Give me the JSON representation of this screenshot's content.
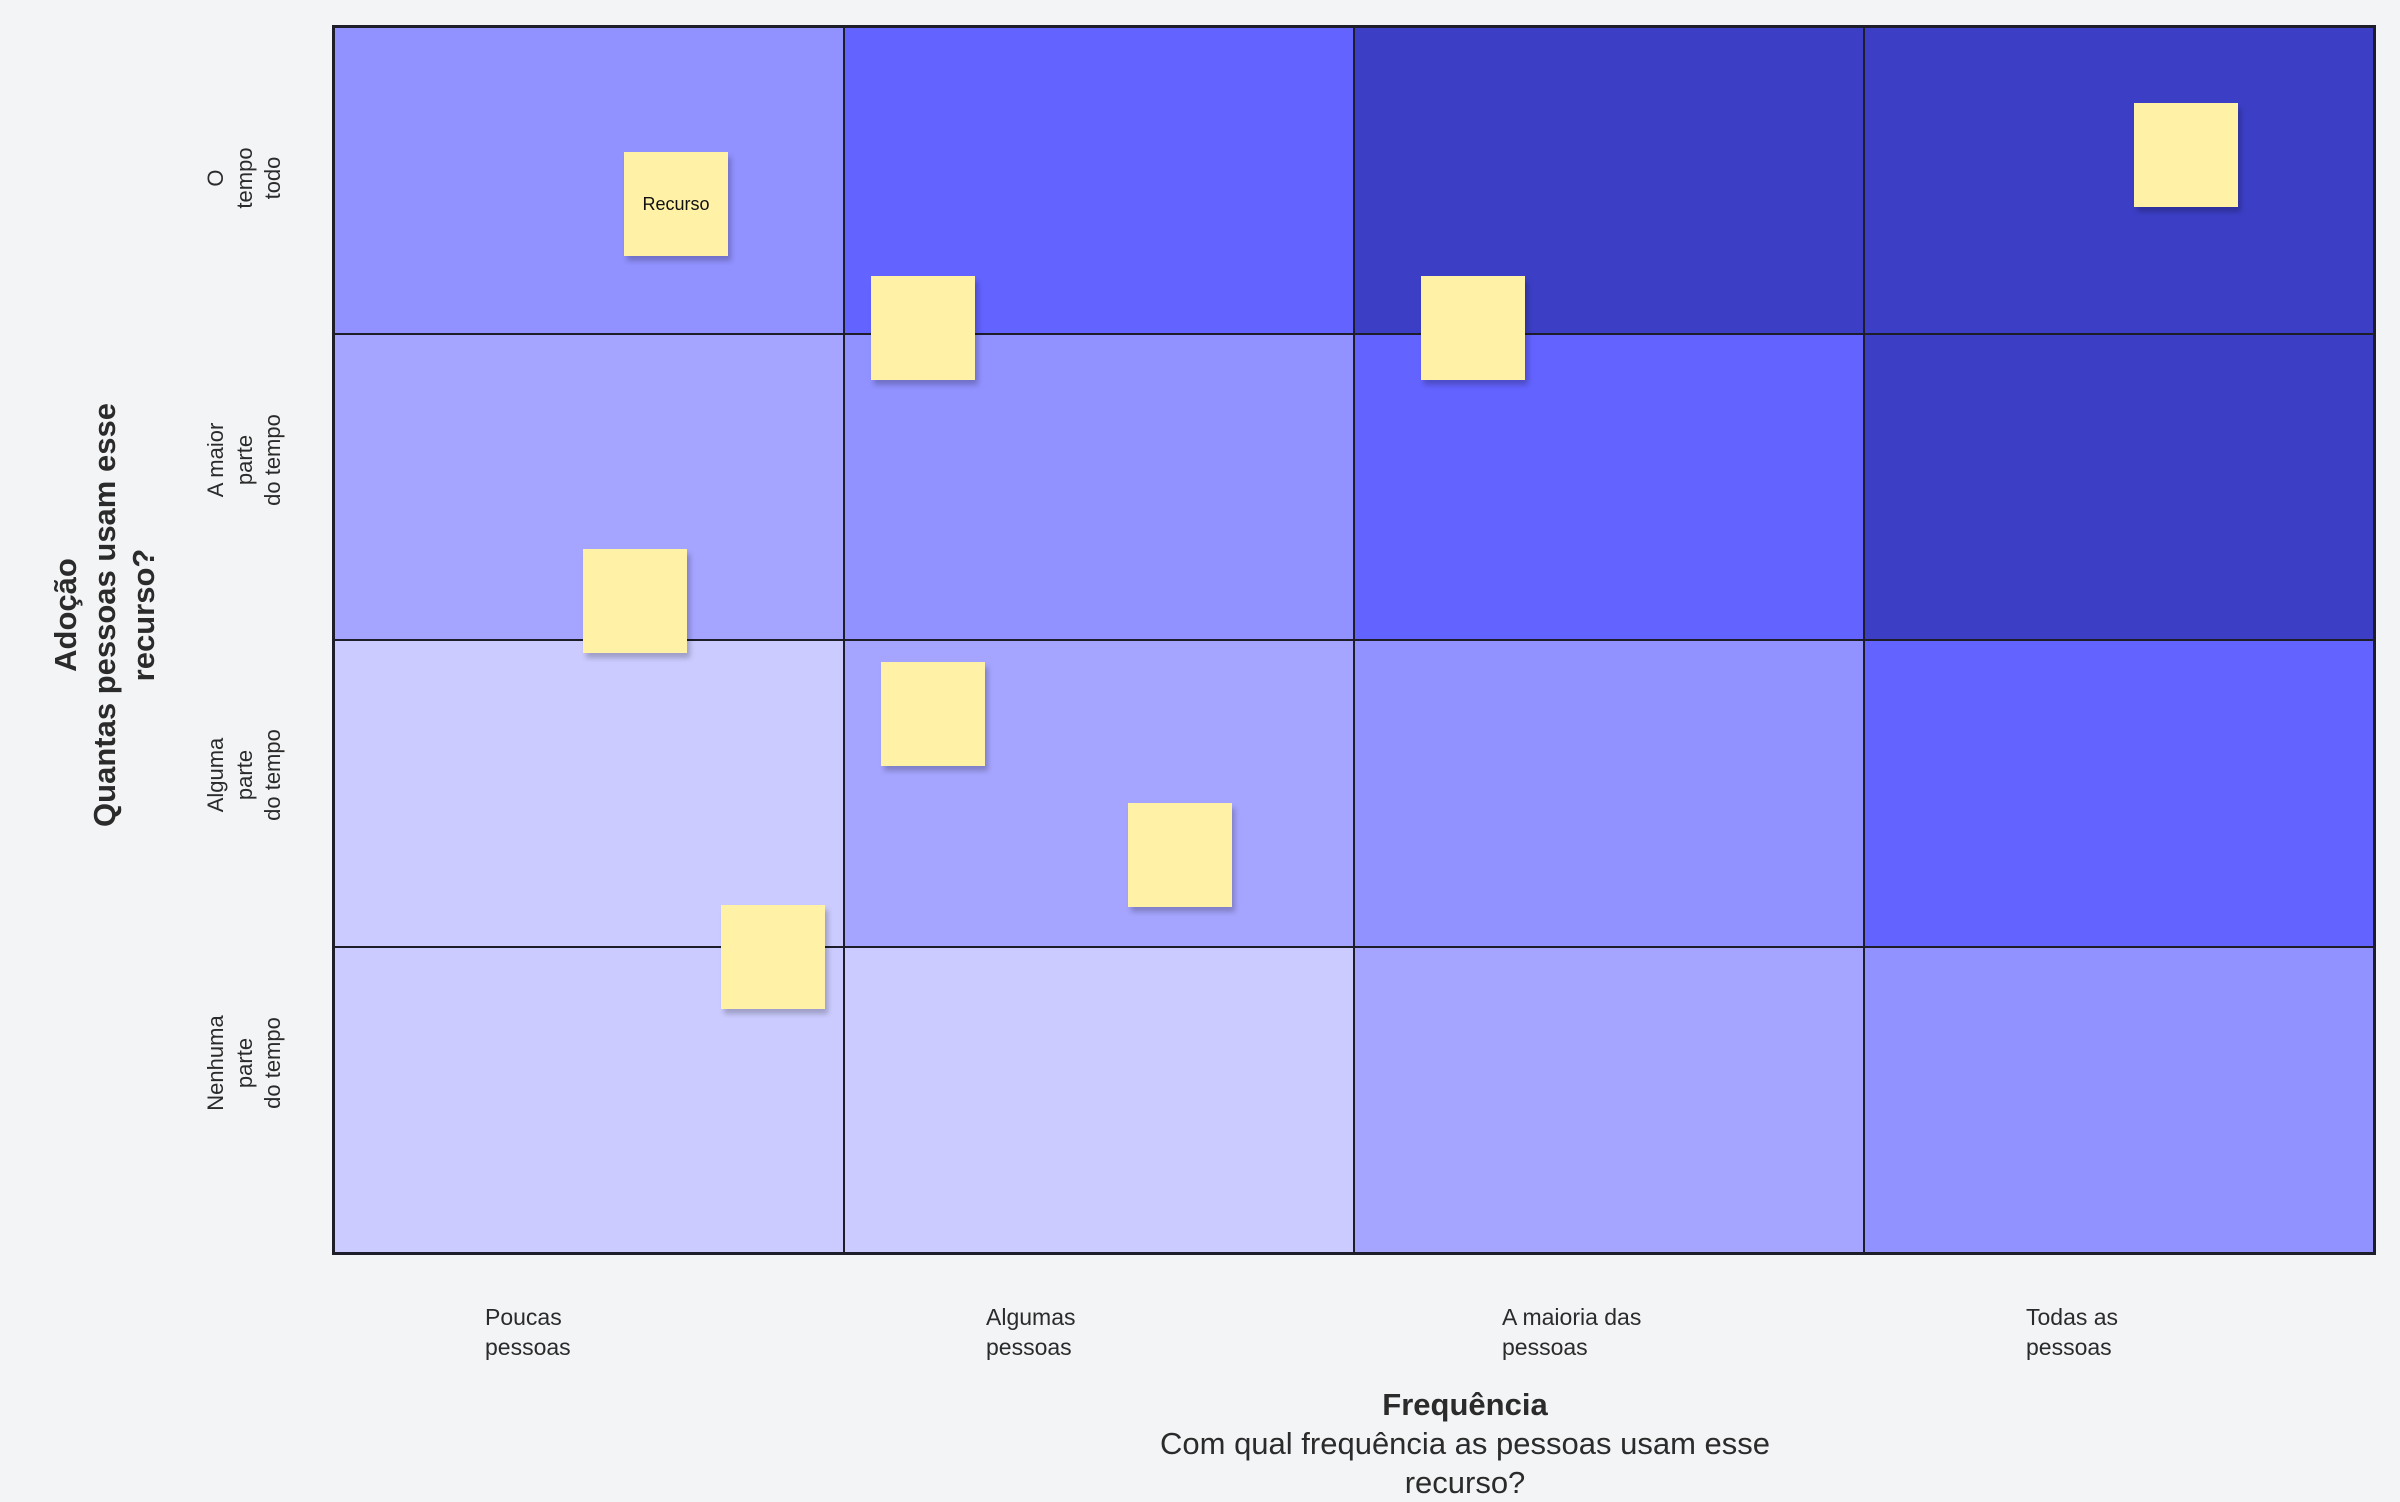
{
  "y_axis": {
    "title": "Adoção",
    "subtitle_lines": [
      "Quantas pessoas usam esse",
      "recurso?"
    ]
  },
  "x_axis": {
    "title": "Frequência",
    "subtitle_lines": [
      "Com qual frequência as pessoas usam esse",
      "recurso?"
    ]
  },
  "rows": [
    {
      "lines": [
        "O",
        "tempo",
        "todo"
      ]
    },
    {
      "lines": [
        "A maior",
        "parte",
        "do tempo"
      ]
    },
    {
      "lines": [
        "Alguma",
        "parte",
        "do tempo"
      ]
    },
    {
      "lines": [
        "Nenhuma",
        "parte",
        "do tempo"
      ]
    }
  ],
  "columns": [
    {
      "lines": [
        "Poucas",
        "pessoas"
      ]
    },
    {
      "lines": [
        "Algumas",
        "pessoas"
      ]
    },
    {
      "lines": [
        "A maioria das",
        "pessoas"
      ]
    },
    {
      "lines": [
        "Todas as",
        "pessoas"
      ]
    }
  ],
  "cell_colors": [
    [
      "#9191ff",
      "#6363ff",
      "#3c3fc6",
      "#3c3fc6"
    ],
    [
      "#a5a5ff",
      "#9191ff",
      "#6363ff",
      "#3c3fc6"
    ],
    [
      "#cbcbff",
      "#a5a5ff",
      "#9191ff",
      "#6363ff"
    ],
    [
      "#cbcbff",
      "#cbcbff",
      "#a5a5ff",
      "#9191ff"
    ]
  ],
  "sticky_notes": [
    {
      "label": "Recurso"
    },
    {
      "label": ""
    },
    {
      "label": ""
    },
    {
      "label": ""
    },
    {
      "label": ""
    },
    {
      "label": ""
    },
    {
      "label": ""
    },
    {
      "label": ""
    }
  ],
  "colors": {
    "background": "#f3f4f6",
    "grid_line": "#1e1e2a",
    "sticky_note": "#fff1a6"
  }
}
